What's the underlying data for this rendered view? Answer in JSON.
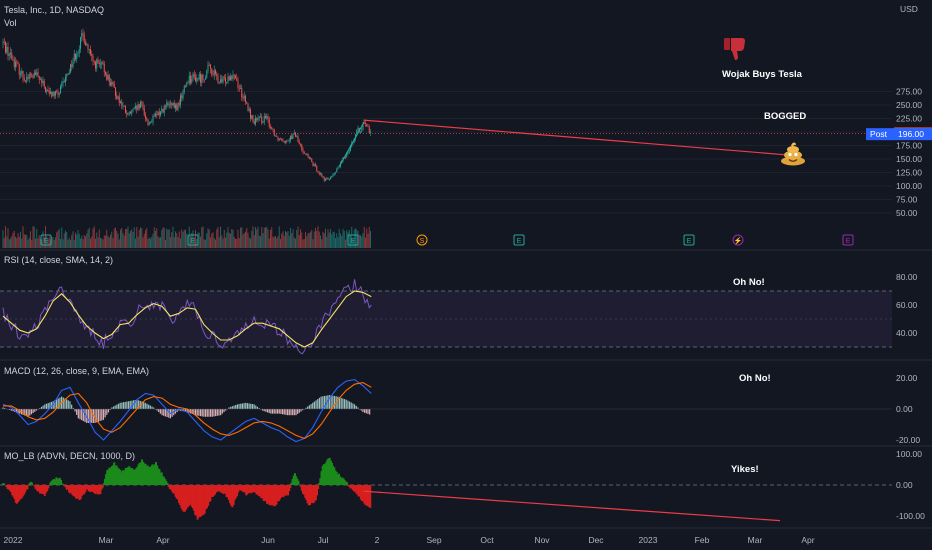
{
  "header": {
    "symbol_line": "Tesla, Inc., 1D, NASDAQ",
    "vol_label": "Vol",
    "currency": "USD"
  },
  "price_tags": {
    "last": "197.37",
    "post_label": "Post",
    "post_value": "196.00"
  },
  "indicators": {
    "rsi": "RSI (14, close, SMA, 14, 2)",
    "macd": "MACD (12, 26, close, 9, EMA, EMA)",
    "mo": "MO_LB (ADVN, DECN, 1000, D)"
  },
  "annotations": {
    "wojak": "Wojak Buys Tesla",
    "bogged": "BOGGED",
    "rsi_note": "Oh No!",
    "macd_note": "Oh No!",
    "mo_note": "Yikes!",
    "dislike_icon": "thumbs-down-icon",
    "poop_icon": "pile-of-poo-icon"
  },
  "colors": {
    "up": "#26a69a",
    "down": "#ef5350",
    "rsi_line": "#7e57c2",
    "rsi_ma": "#f5e663",
    "macd_line": "#2962ff",
    "signal_line": "#ff6d00",
    "mo_pos": "#1b8a1b",
    "mo_neg": "#d61f1f",
    "annot_line": "#ef3b4a",
    "trend_line": "#26a69a",
    "post_tag": "#2962ff",
    "last_tag": "#ef5350"
  },
  "chart_data": [
    {
      "type": "candlestick",
      "title": "Tesla, Inc., 1D, NASDAQ",
      "y_axis_ticks": [
        50,
        75,
        100,
        125,
        150,
        175,
        200,
        225,
        250,
        275
      ],
      "x_axis_labels": [
        "2022",
        "Mar",
        "Apr",
        "Jun",
        "Jul",
        "2",
        "Sep",
        "Oct",
        "Nov",
        "Dec",
        "2023",
        "Feb",
        "Mar",
        "Apr"
      ],
      "close_path": {
        "dates": [
          "2022-01-03",
          "2022-01-12",
          "2022-01-27",
          "2022-02-10",
          "2022-02-24",
          "2022-03-07",
          "2022-03-15",
          "2022-04-04",
          "2022-04-14",
          "2022-04-26",
          "2022-05-05",
          "2022-05-24",
          "2022-06-09",
          "2022-06-16",
          "2022-07-08",
          "2022-07-19",
          "2022-08-01",
          "2022-08-17",
          "2022-08-25",
          "2022-09-06",
          "2022-09-21",
          "2022-10-03",
          "2022-10-13",
          "2022-10-28",
          "2022-11-09",
          "2022-11-18",
          "2022-11-30",
          "2022-12-05",
          "2022-12-20",
          "2023-01-03",
          "2023-01-06",
          "2023-01-13",
          "2023-01-27",
          "2023-02-08",
          "2023-02-16",
          "2023-02-24"
        ],
        "values": [
          365,
          340,
          300,
          305,
          270,
          270,
          300,
          380,
          330,
          320,
          290,
          230,
          250,
          215,
          250,
          245,
          300,
          300,
          320,
          290,
          310,
          260,
          220,
          225,
          190,
          185,
          195,
          175,
          140,
          110,
          113,
          122,
          160,
          200,
          214,
          197
        ]
      },
      "last_price": 197.37,
      "post_market_price": 196.0
    },
    {
      "type": "line",
      "title": "RSI (14, close, SMA, 14, 2)",
      "y_axis_ticks": [
        40,
        60,
        80
      ],
      "bands": [
        30,
        70
      ],
      "series": [
        {
          "name": "RSI",
          "values": [
            55,
            45,
            40,
            38,
            46,
            55,
            68,
            74,
            60,
            52,
            44,
            38,
            33,
            40,
            48,
            45,
            55,
            60,
            62,
            58,
            48,
            55,
            60,
            58,
            42,
            38,
            32,
            35,
            40,
            45,
            50,
            48,
            45,
            42,
            35,
            30,
            28,
            34,
            45,
            55,
            62,
            72,
            74,
            68,
            60
          ]
        },
        {
          "name": "RSI-based MA",
          "values": [
            52,
            47,
            42,
            40,
            43,
            52,
            63,
            68,
            62,
            53,
            45,
            40,
            36,
            39,
            46,
            47,
            53,
            58,
            61,
            59,
            52,
            54,
            58,
            57,
            46,
            40,
            35,
            35,
            38,
            43,
            47,
            47,
            45,
            43,
            38,
            33,
            30,
            33,
            42,
            50,
            58,
            66,
            70,
            69,
            66
          ]
        }
      ]
    },
    {
      "type": "line",
      "title": "MACD (12, 26, close, 9, EMA, EMA)",
      "y_axis_ticks": [
        -20,
        0,
        20
      ],
      "series": [
        {
          "name": "MACD",
          "values": [
            3,
            1,
            -4,
            -10,
            -8,
            -3,
            3,
            12,
            14,
            4,
            -5,
            -15,
            -20,
            -14,
            -8,
            -1,
            6,
            10,
            9,
            3,
            -3,
            0,
            -2,
            -8,
            -14,
            -18,
            -20,
            -16,
            -12,
            -8,
            -6,
            -9,
            -12,
            -14,
            -18,
            -21,
            -19,
            -12,
            -2,
            7,
            14,
            18,
            19,
            15,
            10
          ]
        },
        {
          "name": "Signal",
          "values": [
            2,
            2,
            -1,
            -5,
            -7,
            -6,
            -2,
            4,
            9,
            10,
            4,
            -6,
            -13,
            -15,
            -12,
            -6,
            0,
            6,
            8,
            7,
            3,
            1,
            0,
            -4,
            -9,
            -13,
            -16,
            -17,
            -15,
            -12,
            -9,
            -8,
            -9,
            -11,
            -14,
            -17,
            -19,
            -16,
            -10,
            -2,
            6,
            12,
            16,
            17,
            14
          ]
        }
      ]
    },
    {
      "type": "area",
      "title": "MO_LB (ADVN, DECN, 1000, D)",
      "y_axis_ticks": [
        -100,
        0,
        100
      ],
      "values": [
        10,
        -20,
        -60,
        -30,
        10,
        -20,
        -35,
        15,
        25,
        -10,
        -30,
        -50,
        -15,
        -25,
        -30,
        45,
        70,
        40,
        60,
        50,
        80,
        55,
        70,
        30,
        -10,
        -40,
        -90,
        -60,
        -110,
        -90,
        -40,
        -20,
        -30,
        -70,
        -15,
        -30,
        -20,
        -35,
        -60,
        -70,
        -40,
        -30,
        40,
        -20,
        -65,
        -50,
        60,
        90,
        40,
        20,
        -10,
        -30,
        -60,
        -75
      ]
    }
  ]
}
